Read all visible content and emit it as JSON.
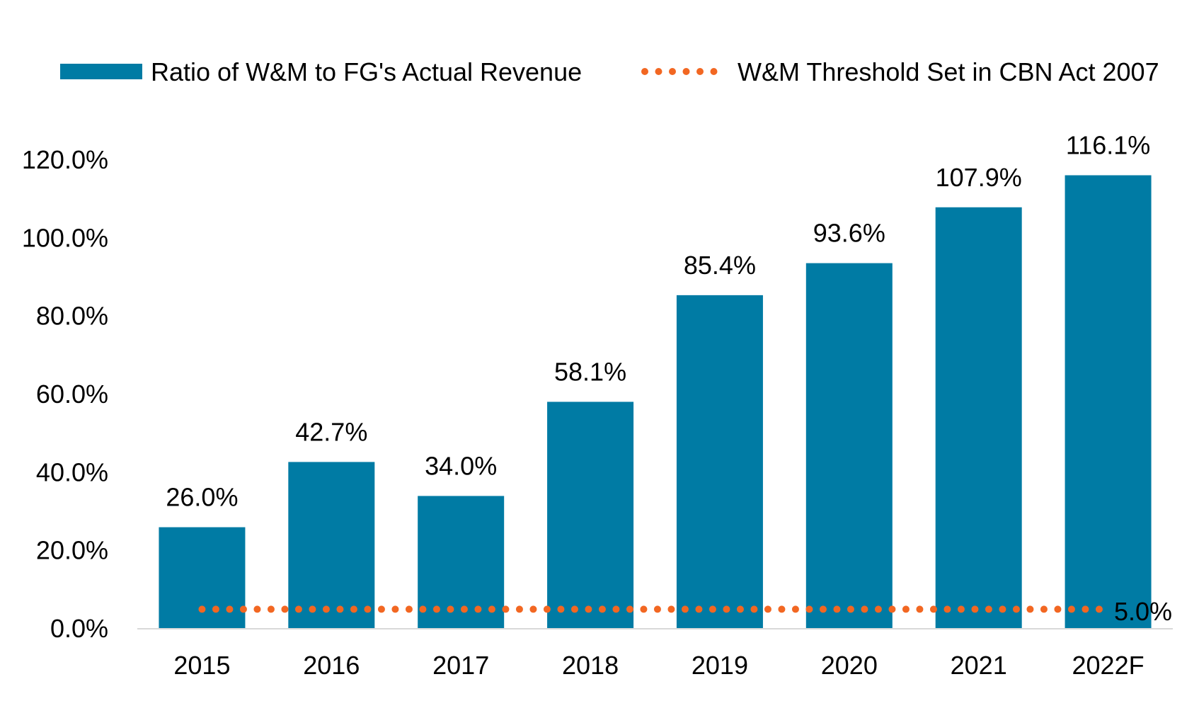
{
  "chart_data": {
    "type": "bar",
    "categories": [
      "2015",
      "2016",
      "2017",
      "2018",
      "2019",
      "2020",
      "2021",
      "2022F"
    ],
    "series": [
      {
        "name": "Ratio of W&M to FG's Actual Revenue",
        "values": [
          26.0,
          42.7,
          34.0,
          58.1,
          85.4,
          93.6,
          107.9,
          116.1
        ],
        "labels": [
          "26.0%",
          "42.7%",
          "34.0%",
          "58.1%",
          "85.4%",
          "93.6%",
          "107.9%",
          "116.1%"
        ],
        "color": "#007BA4"
      },
      {
        "name": "W&M Threshold Set in CBN Act 2007",
        "type": "line",
        "style": "dotted",
        "value": 5.0,
        "label": "5.0%",
        "color": "#F26722"
      }
    ],
    "ylim": [
      0,
      120
    ],
    "yticks": [
      0,
      20,
      40,
      60,
      80,
      100,
      120
    ],
    "ytick_labels": [
      "0.0%",
      "20.0%",
      "40.0%",
      "60.0%",
      "80.0%",
      "100.0%",
      "120.0%"
    ],
    "legend_position": "top",
    "grid": false
  }
}
